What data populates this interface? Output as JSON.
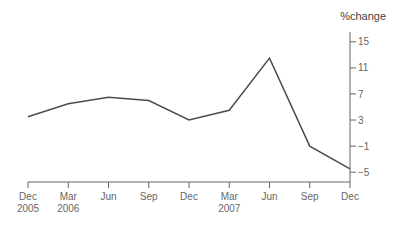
{
  "chart_data": {
    "type": "line",
    "categories": [
      "Dec\n2005",
      "Mar\n2006",
      "Jun",
      "Sep",
      "Dec",
      "Mar\n2007",
      "Jun",
      "Sep",
      "Dec"
    ],
    "values": [
      3.5,
      5.5,
      6.5,
      6.0,
      3.0,
      4.5,
      12.5,
      -1.0,
      -4.5
    ],
    "ylim": [
      -6.5,
      16.5
    ],
    "yticks": [
      {
        "value": -5,
        "label": "−5"
      },
      {
        "value": -1,
        "label": "−1"
      },
      3,
      7,
      11,
      15
    ],
    "ylabel": "%change",
    "color": "#4d4d4d",
    "grid": false
  }
}
